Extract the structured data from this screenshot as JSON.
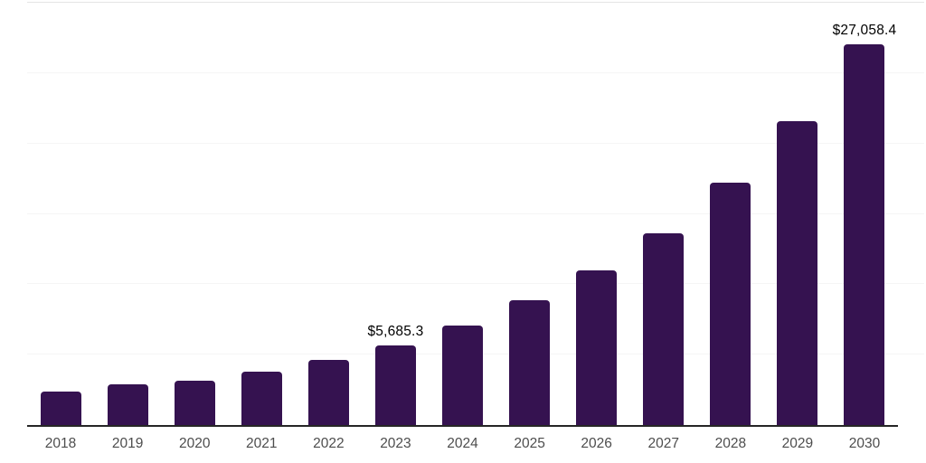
{
  "chart_data": {
    "type": "bar",
    "title": "",
    "xlabel": "",
    "ylabel": "",
    "legend": "none",
    "grid": "horizontal",
    "ylim": [
      0,
      30000
    ],
    "gridline_interval": 5000,
    "categories": [
      "2018",
      "2019",
      "2020",
      "2021",
      "2022",
      "2023",
      "2024",
      "2025",
      "2026",
      "2027",
      "2028",
      "2029",
      "2030"
    ],
    "values": [
      2390,
      2890,
      3150,
      3790,
      4610,
      5685.3,
      7070,
      8850,
      11000,
      13640,
      17200,
      21570,
      27058.4
    ],
    "value_labels": [
      "",
      "",
      "",
      "",
      "",
      "$5,685.3",
      "",
      "",
      "",
      "",
      "",
      "",
      "$27,058.4"
    ],
    "labeled_points": [
      {
        "category": "2023",
        "label": "$5,685.3",
        "value": 5685.3
      },
      {
        "category": "2030",
        "label": "$27,058.4",
        "value": 27058.4
      }
    ],
    "colors": {
      "bar": "#351250",
      "axis": "#262626",
      "gridline": "#f5f5f5",
      "top_gridline": "#e4e4e4",
      "value_label": "#000000",
      "tick_label": "#4d4d4d",
      "background": "#ffffff"
    }
  }
}
